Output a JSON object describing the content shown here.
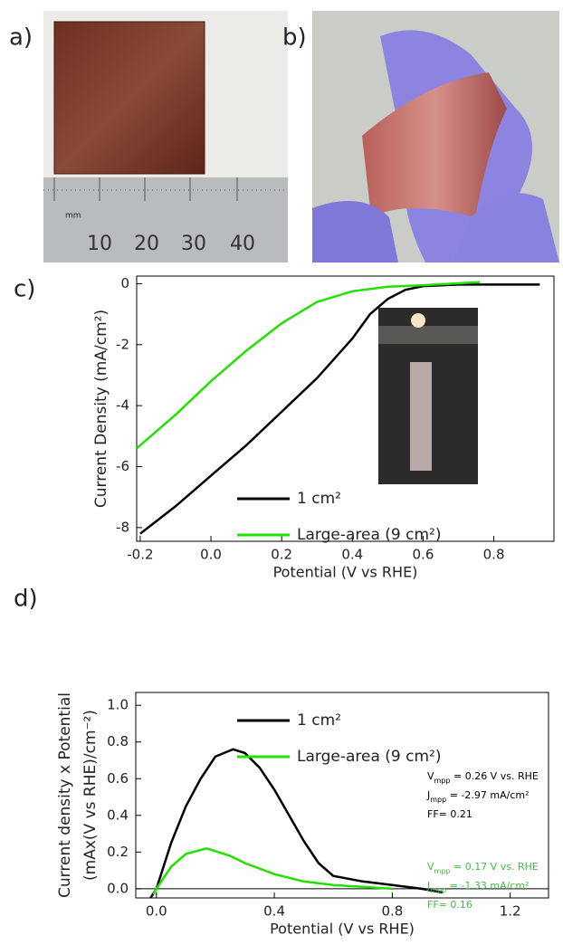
{
  "panels": {
    "a": {
      "label": "a)",
      "ruler_labels": [
        "mm",
        "10",
        "20",
        "30",
        "40"
      ]
    },
    "b": {
      "label": "b)"
    }
  },
  "chart_data": [
    {
      "type": "line",
      "panel_label": "c)",
      "xlabel": "Potential (V vs RHE)",
      "ylabel": "Current Density (mA/cm²)",
      "xlim": [
        -0.21,
        0.97
      ],
      "ylim": [
        -8.45,
        0.25
      ],
      "xticks": [
        -0.2,
        {
          "value": 0,
          "label": "0.0"
        },
        0.2,
        0.4,
        0.6,
        0.8
      ],
      "yticks": [
        0,
        -2,
        -4,
        -6,
        -8
      ],
      "series": [
        {
          "name": "1 cm²",
          "color": "#000000",
          "x": [
            -0.2,
            -0.1,
            0.0,
            0.1,
            0.2,
            0.3,
            0.4,
            0.45,
            0.5,
            0.55,
            0.6,
            0.7,
            0.93
          ],
          "values": [
            -8.2,
            -7.3,
            -6.3,
            -5.3,
            -4.2,
            -3.1,
            -1.8,
            -1.0,
            -0.5,
            -0.2,
            -0.08,
            -0.03,
            -0.03
          ]
        },
        {
          "name": "Large-area (9 cm²)",
          "color": "#22e000",
          "x": [
            -0.21,
            -0.1,
            0.0,
            0.1,
            0.2,
            0.3,
            0.4,
            0.5,
            0.6,
            0.76
          ],
          "values": [
            -5.4,
            -4.3,
            -3.2,
            -2.2,
            -1.3,
            -0.6,
            -0.25,
            -0.1,
            -0.05,
            0.05
          ]
        }
      ]
    },
    {
      "type": "line",
      "panel_label": "d)",
      "xlabel": "Potential (V vs RHE)",
      "ylabel": [
        "Current density x Potential",
        "(mAx(V vs RHE)/cm⁻²)"
      ],
      "xlim": [
        -0.07,
        1.33
      ],
      "ylim": [
        -0.05,
        1.07
      ],
      "xticks": [
        {
          "value": 0,
          "label": "0.0"
        },
        0.4,
        0.8,
        1.2
      ],
      "yticks": [
        {
          "value": 0,
          "label": "0.0"
        },
        0.2,
        0.4,
        0.6,
        0.8,
        {
          "value": 1,
          "label": "1.0"
        }
      ],
      "series": [
        {
          "name": "1 cm²",
          "color": "#000000",
          "x": [
            -0.02,
            0.0,
            0.05,
            0.1,
            0.15,
            0.2,
            0.26,
            0.3,
            0.35,
            0.4,
            0.45,
            0.5,
            0.55,
            0.6,
            0.7,
            0.8,
            0.9,
            0.97
          ],
          "values": [
            -0.05,
            0.0,
            0.25,
            0.45,
            0.6,
            0.72,
            0.76,
            0.74,
            0.66,
            0.54,
            0.4,
            0.26,
            0.14,
            0.07,
            0.04,
            0.02,
            0.0,
            -0.02
          ]
        },
        {
          "name": "Large-area (9 cm²)",
          "color": "#22e000",
          "x": [
            -0.01,
            0.0,
            0.05,
            0.1,
            0.17,
            0.25,
            0.3,
            0.4,
            0.5,
            0.6,
            0.7,
            0.8
          ],
          "values": [
            -0.03,
            0.0,
            0.12,
            0.19,
            0.22,
            0.18,
            0.14,
            0.08,
            0.04,
            0.02,
            0.01,
            0.0
          ]
        }
      ],
      "annotations": [
        {
          "color": "#000000",
          "lines": [
            {
              "symbol": "V",
              "subscript": "mpp",
              "text": " = 0.26 V vs. RHE"
            },
            {
              "symbol": "J",
              "subscript": "mpp",
              "text": " = -2.97 mA/cm²"
            },
            {
              "text": "FF= 0.21"
            }
          ]
        },
        {
          "color": "#44bb44",
          "lines": [
            {
              "symbol": "V",
              "subscript": "mpp",
              "text": " = 0.17 V vs. RHE"
            },
            {
              "symbol": "J",
              "subscript": "mpp",
              "text": " = -1.33 mA/cm²"
            },
            {
              "text": "FF= 0.16"
            }
          ]
        }
      ]
    }
  ]
}
